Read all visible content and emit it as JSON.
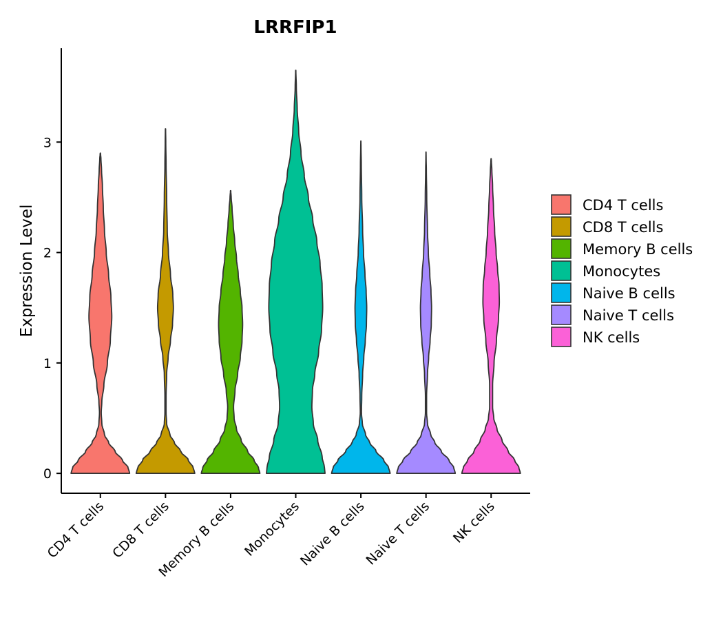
{
  "chart_data": {
    "type": "violin",
    "title": "LRRFIP1",
    "xlabel": "",
    "ylabel": "Expression Level",
    "ylim": [
      -0.18,
      3.85
    ],
    "yticks": [
      0,
      1,
      2,
      3
    ],
    "ytick_labels": [
      "0",
      "1",
      "2",
      "3"
    ],
    "categories": [
      "CD4 T cells",
      "CD8 T cells",
      "Memory B cells",
      "Monocytes",
      "Naive B cells",
      "Naive T cells",
      "NK cells"
    ],
    "legend_position": "right",
    "legend_entries": [
      "CD4 T cells",
      "CD8 T cells",
      "Memory B cells",
      "Monocytes",
      "Naive B cells",
      "Naive T cells",
      "NK cells"
    ],
    "series": [
      {
        "name": "CD4 T cells",
        "color": "#F8766D",
        "max": 2.9,
        "profile": [
          [
            0,
            1.0
          ],
          [
            0.05,
            0.95
          ],
          [
            0.12,
            0.75
          ],
          [
            0.2,
            0.5
          ],
          [
            0.28,
            0.28
          ],
          [
            0.35,
            0.14
          ],
          [
            0.45,
            0.05
          ],
          [
            0.55,
            0.03
          ],
          [
            0.65,
            0.05
          ],
          [
            0.8,
            0.12
          ],
          [
            1.0,
            0.24
          ],
          [
            1.2,
            0.34
          ],
          [
            1.42,
            0.39
          ],
          [
            1.6,
            0.36
          ],
          [
            1.8,
            0.28
          ],
          [
            2.0,
            0.2
          ],
          [
            2.2,
            0.14
          ],
          [
            2.4,
            0.1
          ],
          [
            2.6,
            0.07
          ],
          [
            2.75,
            0.04
          ],
          [
            2.85,
            0.02
          ],
          [
            2.9,
            0.005
          ]
        ]
      },
      {
        "name": "CD8 T cells",
        "color": "#C49A00",
        "max": 3.12,
        "profile": [
          [
            0,
            1.0
          ],
          [
            0.05,
            0.95
          ],
          [
            0.12,
            0.78
          ],
          [
            0.2,
            0.52
          ],
          [
            0.28,
            0.3
          ],
          [
            0.35,
            0.15
          ],
          [
            0.45,
            0.04
          ],
          [
            0.55,
            0.02
          ],
          [
            0.7,
            0.02
          ],
          [
            0.9,
            0.04
          ],
          [
            1.05,
            0.09
          ],
          [
            1.2,
            0.17
          ],
          [
            1.35,
            0.24
          ],
          [
            1.5,
            0.27
          ],
          [
            1.62,
            0.25
          ],
          [
            1.8,
            0.17
          ],
          [
            2.0,
            0.1
          ],
          [
            2.2,
            0.06
          ],
          [
            2.5,
            0.04
          ],
          [
            2.8,
            0.02
          ],
          [
            3.0,
            0.01
          ],
          [
            3.12,
            0.004
          ]
        ]
      },
      {
        "name": "Memory B cells",
        "color": "#53B400",
        "max": 2.56,
        "profile": [
          [
            0,
            1.0
          ],
          [
            0.05,
            0.95
          ],
          [
            0.12,
            0.8
          ],
          [
            0.2,
            0.58
          ],
          [
            0.3,
            0.36
          ],
          [
            0.4,
            0.2
          ],
          [
            0.5,
            0.12
          ],
          [
            0.6,
            0.1
          ],
          [
            0.75,
            0.15
          ],
          [
            0.9,
            0.24
          ],
          [
            1.05,
            0.33
          ],
          [
            1.2,
            0.39
          ],
          [
            1.35,
            0.41
          ],
          [
            1.5,
            0.39
          ],
          [
            1.65,
            0.33
          ],
          [
            1.8,
            0.26
          ],
          [
            1.95,
            0.2
          ],
          [
            2.1,
            0.14
          ],
          [
            2.25,
            0.09
          ],
          [
            2.4,
            0.05
          ],
          [
            2.5,
            0.02
          ],
          [
            2.56,
            0.005
          ]
        ]
      },
      {
        "name": "Monocytes",
        "color": "#00C094",
        "max": 3.65,
        "profile": [
          [
            0,
            1.0
          ],
          [
            0.05,
            0.98
          ],
          [
            0.15,
            0.9
          ],
          [
            0.3,
            0.75
          ],
          [
            0.45,
            0.6
          ],
          [
            0.6,
            0.55
          ],
          [
            0.75,
            0.57
          ],
          [
            0.9,
            0.65
          ],
          [
            1.1,
            0.78
          ],
          [
            1.3,
            0.88
          ],
          [
            1.5,
            0.92
          ],
          [
            1.7,
            0.9
          ],
          [
            1.9,
            0.83
          ],
          [
            2.1,
            0.72
          ],
          [
            2.3,
            0.58
          ],
          [
            2.5,
            0.43
          ],
          [
            2.7,
            0.29
          ],
          [
            2.9,
            0.18
          ],
          [
            3.1,
            0.1
          ],
          [
            3.3,
            0.05
          ],
          [
            3.5,
            0.02
          ],
          [
            3.65,
            0.004
          ]
        ]
      },
      {
        "name": "Naive B cells",
        "color": "#00B6EB",
        "max": 3.01,
        "profile": [
          [
            0,
            1.0
          ],
          [
            0.05,
            0.95
          ],
          [
            0.12,
            0.78
          ],
          [
            0.2,
            0.52
          ],
          [
            0.28,
            0.3
          ],
          [
            0.35,
            0.16
          ],
          [
            0.45,
            0.05
          ],
          [
            0.55,
            0.02
          ],
          [
            0.7,
            0.03
          ],
          [
            0.9,
            0.06
          ],
          [
            1.05,
            0.1
          ],
          [
            1.2,
            0.15
          ],
          [
            1.35,
            0.19
          ],
          [
            1.5,
            0.2
          ],
          [
            1.65,
            0.18
          ],
          [
            1.8,
            0.14
          ],
          [
            2.0,
            0.09
          ],
          [
            2.2,
            0.06
          ],
          [
            2.5,
            0.03
          ],
          [
            2.8,
            0.015
          ],
          [
            2.95,
            0.006
          ],
          [
            3.01,
            0.002
          ]
        ]
      },
      {
        "name": "Naive T cells",
        "color": "#A58AFF",
        "max": 2.91,
        "profile": [
          [
            0,
            1.0
          ],
          [
            0.05,
            0.95
          ],
          [
            0.12,
            0.78
          ],
          [
            0.2,
            0.52
          ],
          [
            0.28,
            0.3
          ],
          [
            0.35,
            0.16
          ],
          [
            0.45,
            0.05
          ],
          [
            0.55,
            0.02
          ],
          [
            0.7,
            0.02
          ],
          [
            0.9,
            0.05
          ],
          [
            1.05,
            0.09
          ],
          [
            1.2,
            0.14
          ],
          [
            1.35,
            0.18
          ],
          [
            1.5,
            0.19
          ],
          [
            1.65,
            0.17
          ],
          [
            1.8,
            0.13
          ],
          [
            2.0,
            0.08
          ],
          [
            2.2,
            0.05
          ],
          [
            2.5,
            0.025
          ],
          [
            2.75,
            0.012
          ],
          [
            2.85,
            0.005
          ],
          [
            2.91,
            0.002
          ]
        ]
      },
      {
        "name": "NK cells",
        "color": "#FB61D7",
        "max": 2.85,
        "profile": [
          [
            0,
            1.0
          ],
          [
            0.05,
            0.95
          ],
          [
            0.12,
            0.8
          ],
          [
            0.2,
            0.58
          ],
          [
            0.3,
            0.37
          ],
          [
            0.4,
            0.2
          ],
          [
            0.5,
            0.09
          ],
          [
            0.6,
            0.05
          ],
          [
            0.8,
            0.05
          ],
          [
            1.0,
            0.1
          ],
          [
            1.2,
            0.18
          ],
          [
            1.4,
            0.25
          ],
          [
            1.55,
            0.28
          ],
          [
            1.7,
            0.27
          ],
          [
            1.85,
            0.22
          ],
          [
            2.0,
            0.17
          ],
          [
            2.2,
            0.12
          ],
          [
            2.4,
            0.08
          ],
          [
            2.6,
            0.05
          ],
          [
            2.75,
            0.025
          ],
          [
            2.82,
            0.01
          ],
          [
            2.85,
            0.003
          ]
        ]
      }
    ]
  }
}
